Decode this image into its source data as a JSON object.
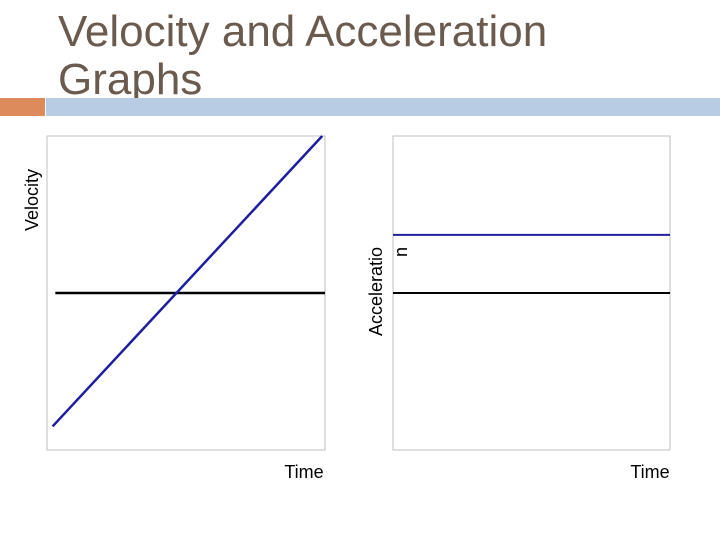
{
  "title": "Velocity and Acceleration Graphs",
  "colors": {
    "accent": "#dd8a5c",
    "rule": "#b8cce4",
    "title": "#6b5a4e",
    "series": "#1f1f9e"
  },
  "chart_data": [
    {
      "type": "line",
      "title": "",
      "xlabel": "Time",
      "ylabel": "Velocity",
      "xlim": [
        0,
        1
      ],
      "ylim": [
        -1,
        1
      ],
      "grid": false,
      "series": [
        {
          "name": "velocity",
          "x": [
            0.02,
            0.99
          ],
          "y": [
            -0.85,
            1.0
          ]
        },
        {
          "name": "time axis",
          "x": [
            0.03,
            1.0
          ],
          "y": [
            0,
            0
          ]
        }
      ]
    },
    {
      "type": "line",
      "title": "",
      "xlabel": "Time",
      "ylabel_lines": [
        "Acceleratio",
        "n"
      ],
      "xlim": [
        0,
        1
      ],
      "ylim": [
        -1,
        1
      ],
      "grid": false,
      "series": [
        {
          "name": "acceleration",
          "x": [
            0.0,
            1.0
          ],
          "y": [
            0.37,
            0.37
          ]
        },
        {
          "name": "time axis",
          "x": [
            0.0,
            1.0
          ],
          "y": [
            0,
            0
          ]
        }
      ]
    }
  ]
}
